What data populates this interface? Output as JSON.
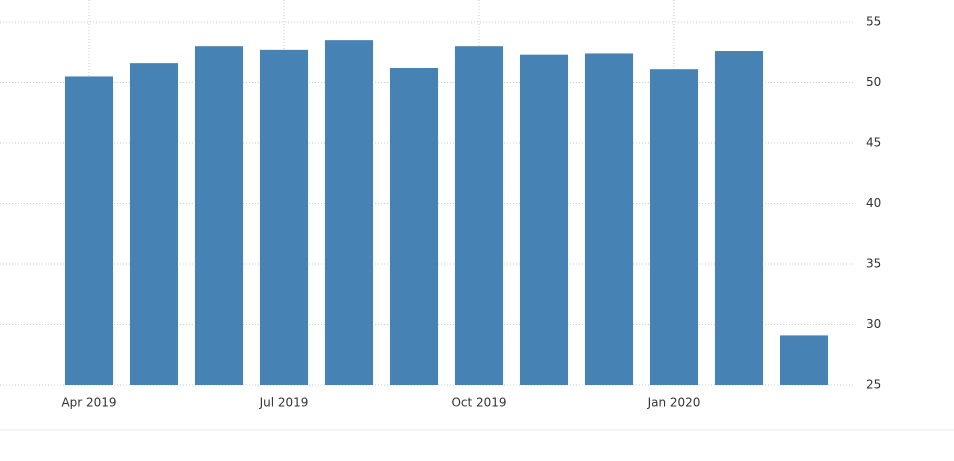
{
  "chart_data": {
    "type": "bar",
    "categories": [
      "Apr 2019",
      null,
      null,
      "Jul 2019",
      null,
      null,
      "Oct 2019",
      null,
      null,
      "Jan 2020",
      null,
      null
    ],
    "values": [
      50.5,
      51.6,
      53.0,
      52.7,
      53.5,
      51.2,
      53.0,
      52.3,
      52.4,
      51.1,
      52.6,
      29.1
    ],
    "color": "#4682b4",
    "ylim": [
      25,
      55
    ],
    "yticks": [
      25,
      30,
      35,
      40,
      45,
      50,
      55
    ],
    "grid": true
  }
}
